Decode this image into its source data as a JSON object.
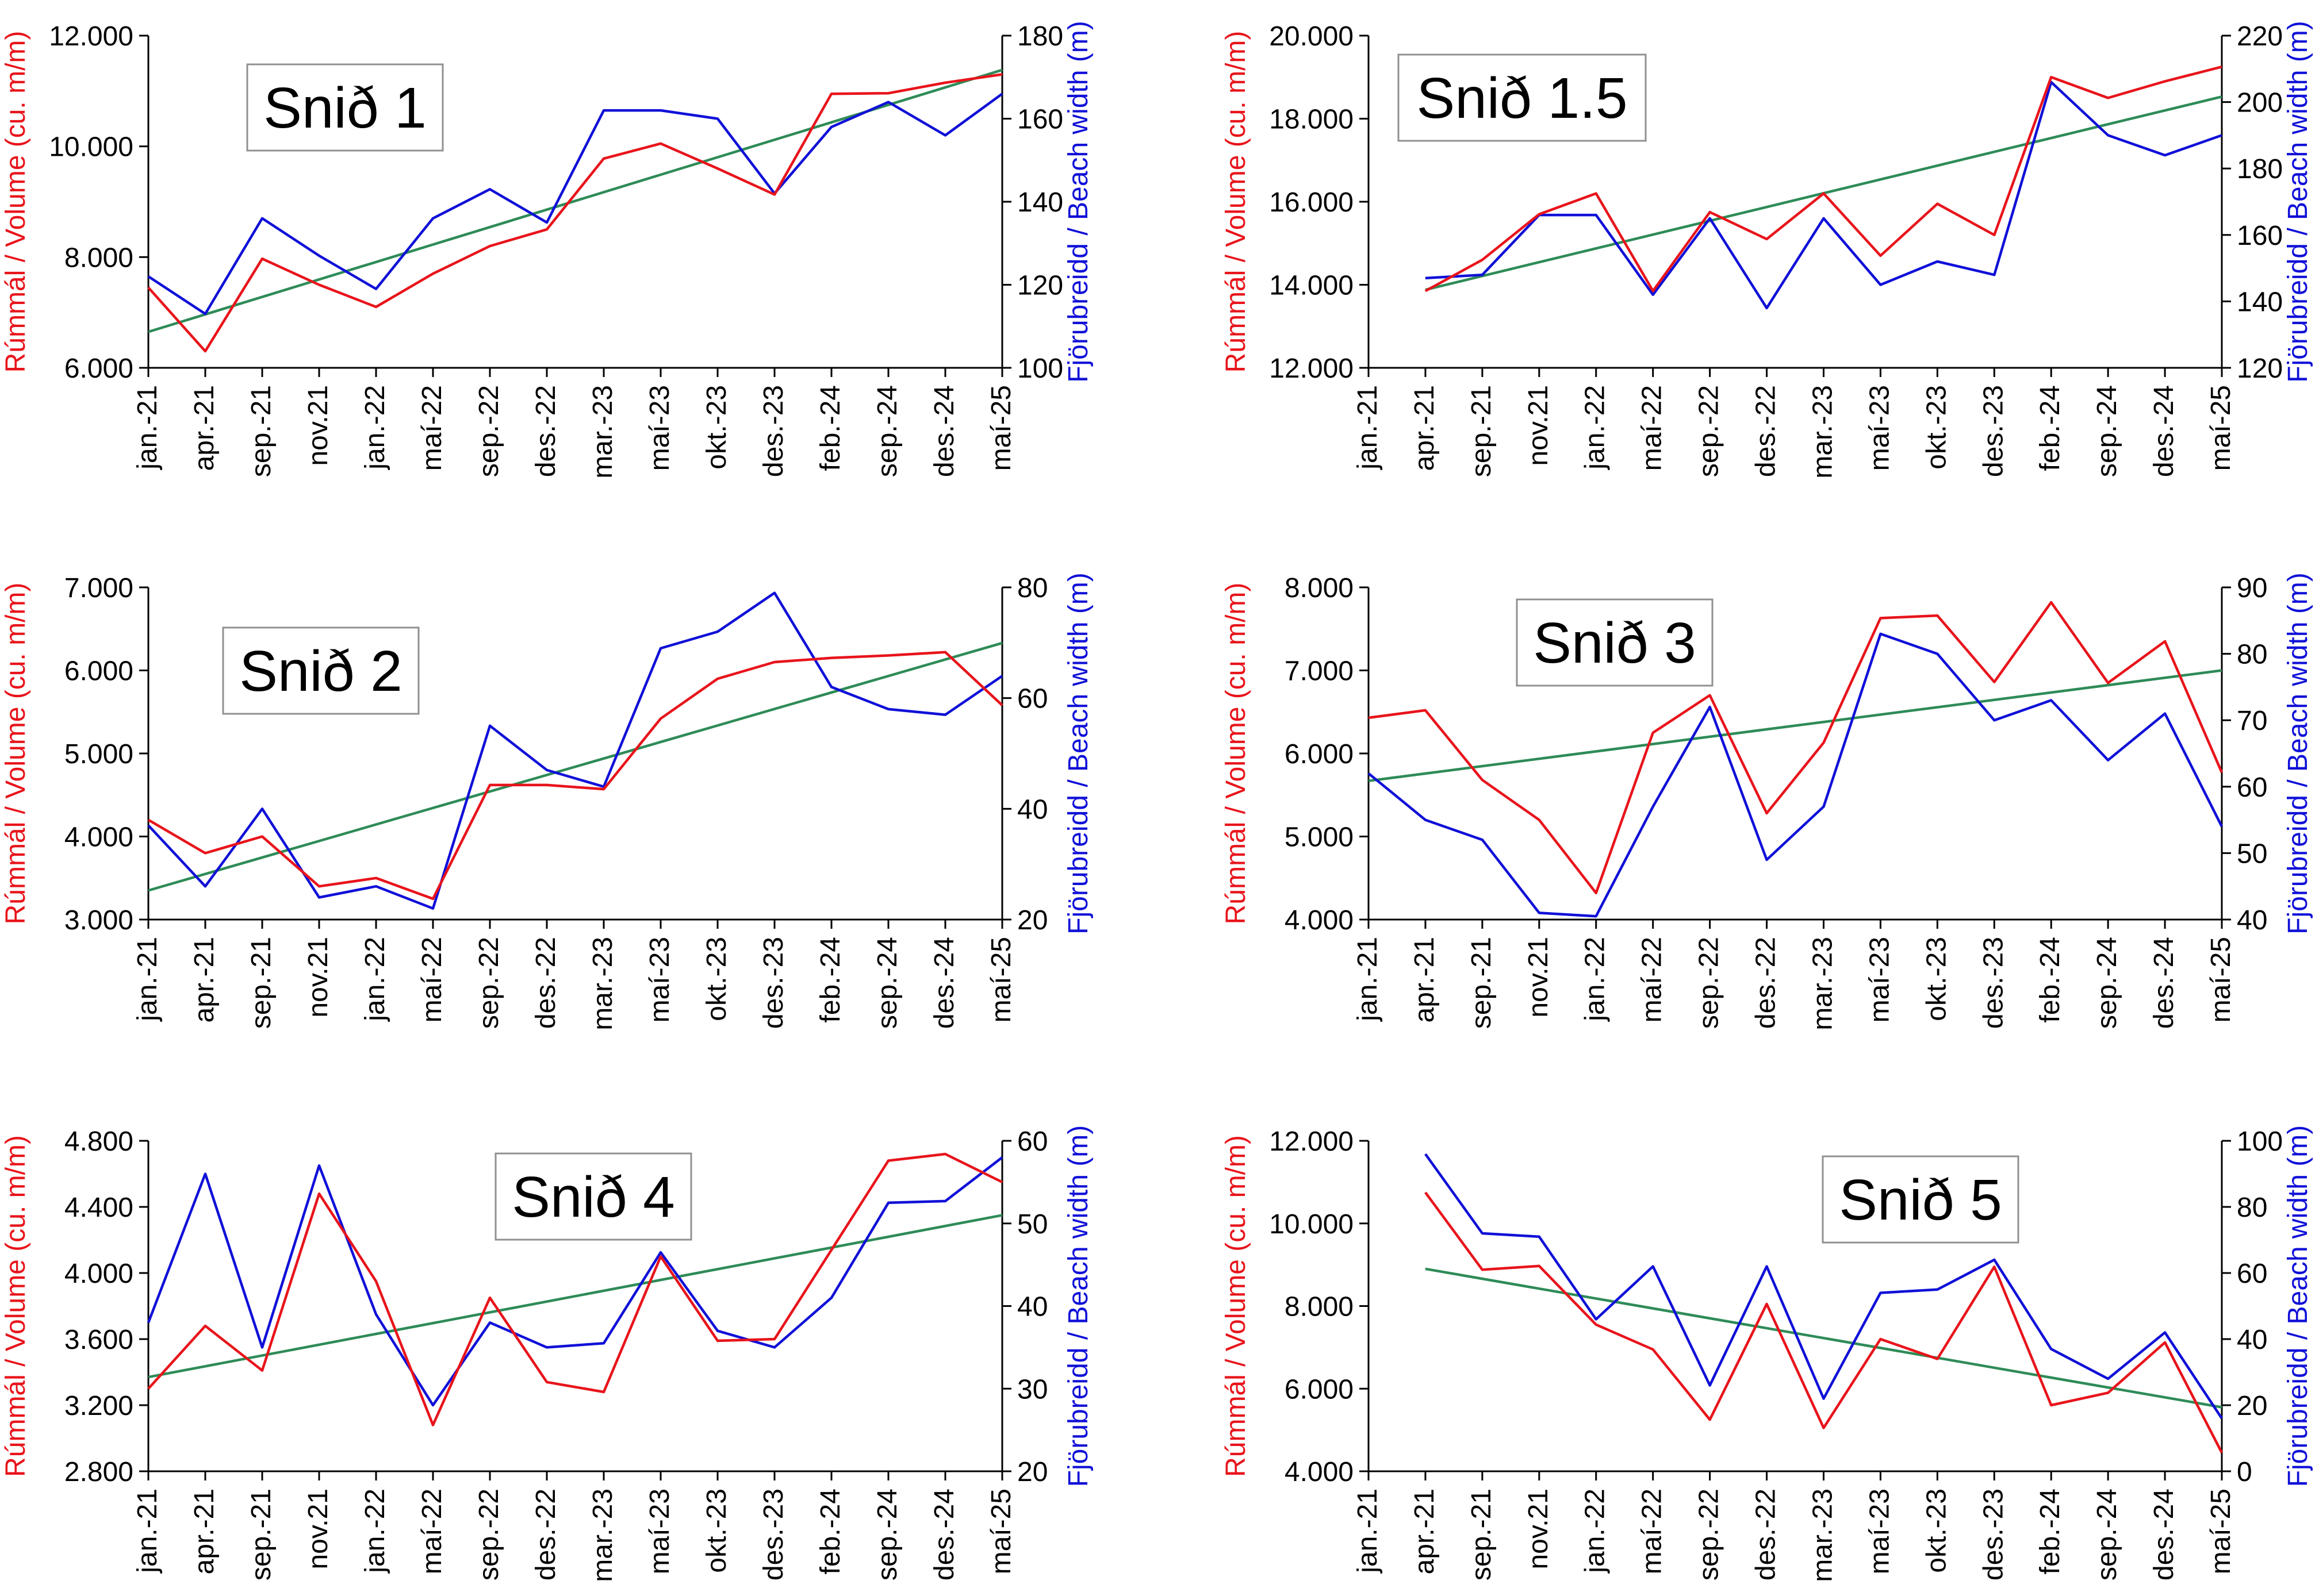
{
  "colors": {
    "volume": "#e8141b",
    "width": "#1010d8",
    "trend": "#2e8b57",
    "axis": "#000000"
  },
  "labels": {
    "y_left": "Rúmmál / Volume (cu. m/m)",
    "y_right": "Fjörubreidd / Beach width (m)"
  },
  "chart_data": [
    {
      "type": "line",
      "title": "Snið 1",
      "categories": [
        "jan.-21",
        "apr.-21",
        "sep.-21",
        "nov.21",
        "jan.-22",
        "maí-22",
        "sep.-22",
        "des.-22",
        "mar.-23",
        "maí-23",
        "okt.-23",
        "des.-23",
        "feb.-24",
        "sep.-24",
        "des.-24",
        "maí-25"
      ],
      "left_axis": {
        "label": "Rúmmál / Volume (cu. m/m)",
        "min": 6000,
        "max": 12000,
        "ticks": [
          "6.000",
          "8.000",
          "10.000",
          "12.000"
        ]
      },
      "right_axis": {
        "label": "Fjörubreidd / Beach width (m)",
        "min": 100,
        "max": 180,
        "ticks": [
          "100",
          "120",
          "140",
          "160",
          "180"
        ]
      },
      "series": [
        {
          "name": "Rúmmál / Volume",
          "axis": "left",
          "color": "#e8141b",
          "values": [
            7450,
            6300,
            7970,
            7500,
            7100,
            7700,
            8200,
            8500,
            9780,
            10050,
            9600,
            9130,
            10950,
            10960,
            11150,
            11300
          ]
        },
        {
          "name": "Fjörubreidd / Beach width",
          "axis": "right",
          "color": "#1010d8",
          "values": [
            122,
            113,
            136,
            127,
            119,
            136,
            143,
            135,
            162,
            162,
            160,
            142,
            158,
            164,
            156,
            166
          ]
        },
        {
          "name": "Trend",
          "axis": "left",
          "color": "#2e8b57",
          "values": [
            6650,
            null,
            null,
            null,
            null,
            null,
            null,
            null,
            null,
            null,
            null,
            null,
            null,
            null,
            null,
            11380
          ]
        }
      ]
    },
    {
      "type": "line",
      "title": "Snið 1.5",
      "categories": [
        "jan.-21",
        "apr.-21",
        "sep.-21",
        "nov.21",
        "jan.-22",
        "maí-22",
        "sep.-22",
        "des.-22",
        "mar.-23",
        "maí-23",
        "okt.-23",
        "des.-23",
        "feb.-24",
        "sep.-24",
        "des.-24",
        "maí-25"
      ],
      "left_axis": {
        "label": "Rúmmál / Volume (cu. m/m)",
        "min": 12000,
        "max": 20000,
        "ticks": [
          "12.000",
          "14.000",
          "16.000",
          "18.000",
          "20.000"
        ]
      },
      "right_axis": {
        "label": "Fjörubreidd / Beach width (m)",
        "min": 120,
        "max": 220,
        "ticks": [
          "120",
          "140",
          "160",
          "180",
          "200",
          "220"
        ]
      },
      "series": [
        {
          "name": "Rúmmál / Volume",
          "axis": "left",
          "color": "#e8141b",
          "values": [
            null,
            13850,
            14600,
            15700,
            16200,
            13850,
            15750,
            15100,
            16200,
            14700,
            15950,
            15200,
            19000,
            18500,
            18900,
            19250
          ]
        },
        {
          "name": "Fjörubreidd / Beach width",
          "axis": "right",
          "color": "#1010d8",
          "values": [
            null,
            147,
            148,
            166,
            166,
            142,
            165,
            138,
            165,
            145,
            152,
            148,
            206,
            190,
            184,
            190
          ]
        },
        {
          "name": "Trend",
          "axis": "left",
          "color": "#2e8b57",
          "values": [
            null,
            13880,
            null,
            null,
            null,
            null,
            null,
            null,
            null,
            null,
            null,
            null,
            null,
            null,
            null,
            18530
          ]
        }
      ]
    },
    {
      "type": "line",
      "title": "Snið 2",
      "categories": [
        "jan.-21",
        "apr.-21",
        "sep.-21",
        "nov.21",
        "jan.-22",
        "maí-22",
        "sep.-22",
        "des.-22",
        "mar.-23",
        "maí-23",
        "okt.-23",
        "des.-23",
        "feb.-24",
        "sep.-24",
        "des.-24",
        "maí-25"
      ],
      "left_axis": {
        "label": "Rúmmál / Volume (cu. m/m)",
        "min": 3000,
        "max": 7000,
        "ticks": [
          "3.000",
          "4.000",
          "5.000",
          "6.000",
          "7.000"
        ]
      },
      "right_axis": {
        "label": "Fjörubreidd / Beach width (m)",
        "min": 20,
        "max": 80,
        "ticks": [
          "20",
          "40",
          "60",
          "80"
        ]
      },
      "series": [
        {
          "name": "Rúmmál / Volume",
          "axis": "left",
          "color": "#e8141b",
          "values": [
            4200,
            3800,
            4000,
            3400,
            3500,
            3250,
            4620,
            4620,
            4570,
            5420,
            5900,
            6100,
            6150,
            6180,
            6220,
            5580
          ]
        },
        {
          "name": "Fjörubreidd / Beach width",
          "axis": "right",
          "color": "#1010d8",
          "values": [
            37,
            26,
            40,
            24,
            26,
            22,
            55,
            47,
            44,
            69,
            72,
            79,
            62,
            58,
            57,
            64
          ]
        },
        {
          "name": "Trend",
          "axis": "left",
          "color": "#2e8b57",
          "values": [
            3350,
            null,
            null,
            null,
            null,
            null,
            null,
            null,
            null,
            null,
            null,
            null,
            null,
            null,
            null,
            6330
          ]
        }
      ]
    },
    {
      "type": "line",
      "title": "Snið 3",
      "categories": [
        "jan.-21",
        "apr.-21",
        "sep.-21",
        "nov.21",
        "jan.-22",
        "maí-22",
        "sep.-22",
        "des.-22",
        "mar.-23",
        "maí-23",
        "okt.-23",
        "des.-23",
        "feb.-24",
        "sep.-24",
        "des.-24",
        "maí-25"
      ],
      "left_axis": {
        "label": "Rúmmál / Volume (cu. m/m)",
        "min": 4000,
        "max": 8000,
        "ticks": [
          "4.000",
          "5.000",
          "6.000",
          "7.000",
          "8.000"
        ]
      },
      "right_axis": {
        "label": "Fjörubreidd / Beach width (m)",
        "min": 40,
        "max": 90,
        "ticks": [
          "40",
          "50",
          "60",
          "70",
          "80",
          "90"
        ]
      },
      "series": [
        {
          "name": "Rúmmál / Volume",
          "axis": "left",
          "color": "#e8141b",
          "values": [
            6430,
            6520,
            5680,
            5200,
            4320,
            6250,
            6700,
            5280,
            6130,
            7630,
            7660,
            6860,
            7820,
            6850,
            7350,
            5770
          ]
        },
        {
          "name": "Fjörubreidd / Beach width",
          "axis": "right",
          "color": "#1010d8",
          "values": [
            62,
            55,
            52,
            41,
            40.5,
            57,
            72,
            49,
            57,
            83,
            80,
            70,
            73,
            64,
            71,
            54
          ]
        },
        {
          "name": "Trend",
          "axis": "left",
          "color": "#2e8b57",
          "values": [
            5670,
            null,
            null,
            null,
            null,
            null,
            null,
            null,
            null,
            null,
            null,
            null,
            null,
            null,
            null,
            7000
          ]
        }
      ]
    },
    {
      "type": "line",
      "title": "Snið 4",
      "categories": [
        "jan.-21",
        "apr.-21",
        "sep.-21",
        "nov.21",
        "jan.-22",
        "maí-22",
        "sep.-22",
        "des.-22",
        "mar.-23",
        "maí-23",
        "okt.-23",
        "des.-23",
        "feb.-24",
        "sep.-24",
        "des.-24",
        "maí-25"
      ],
      "left_axis": {
        "label": "Rúmmál / Volume (cu. m/m)",
        "min": 2800,
        "max": 4800,
        "ticks": [
          "2.800",
          "3.200",
          "3.600",
          "4.000",
          "4.400",
          "4.800"
        ]
      },
      "right_axis": {
        "label": "Fjörubreidd / Beach width (m)",
        "min": 20,
        "max": 60,
        "ticks": [
          "20",
          "30",
          "40",
          "50",
          "60"
        ]
      },
      "series": [
        {
          "name": "Rúmmál / Volume",
          "axis": "left",
          "color": "#e8141b",
          "values": [
            3300,
            3680,
            3410,
            4480,
            3950,
            3080,
            3850,
            3340,
            3280,
            4100,
            3590,
            3600,
            4140,
            4680,
            4720,
            4550
          ]
        },
        {
          "name": "Fjörubreidd / Beach width",
          "axis": "right",
          "color": "#1010d8",
          "values": [
            38,
            56,
            35,
            57,
            39,
            28,
            38,
            35,
            35.5,
            46.5,
            37,
            35,
            41,
            52.5,
            52.7,
            58
          ]
        },
        {
          "name": "Trend",
          "axis": "left",
          "color": "#2e8b57",
          "values": [
            3370,
            null,
            null,
            null,
            null,
            null,
            null,
            null,
            null,
            null,
            null,
            null,
            null,
            null,
            null,
            4350
          ]
        }
      ]
    },
    {
      "type": "line",
      "title": "Snið 5",
      "categories": [
        "jan.-21",
        "apr.-21",
        "sep.-21",
        "nov.21",
        "jan.-22",
        "maí-22",
        "sep.-22",
        "des.-22",
        "mar.-23",
        "maí-23",
        "okt.-23",
        "des.-23",
        "feb.-24",
        "sep.-24",
        "des.-24",
        "maí-25"
      ],
      "left_axis": {
        "label": "Rúmmál / Volume (cu. m/m)",
        "min": 4000,
        "max": 12000,
        "ticks": [
          "4.000",
          "6.000",
          "8.000",
          "10.000",
          "12.000"
        ]
      },
      "right_axis": {
        "label": "Fjörubreidd / Beach width (m)",
        "min": 0,
        "max": 100,
        "ticks": [
          "0",
          "20",
          "40",
          "60",
          "80",
          "100"
        ]
      },
      "series": [
        {
          "name": "Rúmmál / Volume",
          "axis": "left",
          "color": "#e8141b",
          "values": [
            null,
            10750,
            8880,
            8970,
            7550,
            6950,
            5250,
            8050,
            5050,
            7200,
            6720,
            8950,
            5600,
            5900,
            7120,
            4450
          ]
        },
        {
          "name": "Fjörubreidd / Beach width",
          "axis": "right",
          "color": "#1010d8",
          "values": [
            null,
            96,
            72,
            71,
            46,
            62,
            26,
            62,
            22,
            54,
            55,
            64,
            37,
            28,
            42,
            16
          ]
        },
        {
          "name": "Trend",
          "axis": "left",
          "color": "#2e8b57",
          "values": [
            null,
            8900,
            null,
            null,
            null,
            null,
            null,
            null,
            null,
            null,
            null,
            null,
            null,
            null,
            null,
            5550
          ]
        }
      ]
    }
  ]
}
